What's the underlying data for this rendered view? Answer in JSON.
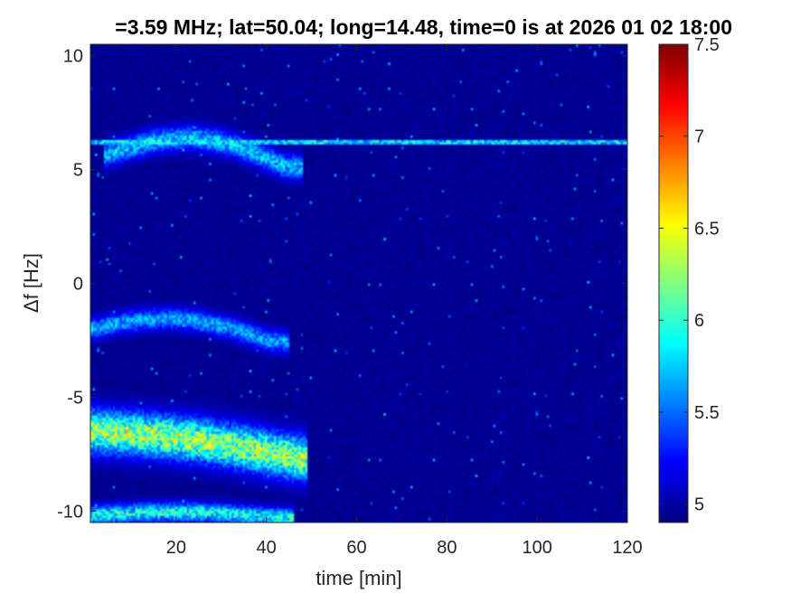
{
  "chart_data": {
    "type": "heatmap",
    "title": "=3.59 MHz;  lat=50.04; long=14.48, time=0 is at 2026 01 02 18:00",
    "xlabel": "time [min]",
    "ylabel": "Δf [Hz]",
    "xlim": [
      1,
      120
    ],
    "ylim": [
      -10.5,
      10.5
    ],
    "x_ticks": [
      20,
      40,
      60,
      80,
      100,
      120
    ],
    "y_ticks": [
      -10,
      -5,
      0,
      5,
      10
    ],
    "colormap": "jet",
    "clim": [
      4.9,
      7.5
    ],
    "colorbar_ticks": [
      5,
      5.5,
      6,
      6.5,
      7,
      7.5
    ],
    "grid": false,
    "background_level": 4.95,
    "colors": {
      "low": "#00008f",
      "mid": "#00ffff",
      "high": "#800000"
    },
    "features": [
      {
        "name": "carrier line",
        "time_start": 1,
        "time_end": 120,
        "df_start": 6.2,
        "df_end": 6.2,
        "df_peak": 6.2,
        "df_width": 0.08,
        "level": 6.3
      },
      {
        "name": "upper echo",
        "time_start": 4,
        "time_end": 48,
        "df_start": 5.6,
        "df_end": 5.1,
        "df_peak": 6.6,
        "df_width": 0.5,
        "level": 5.8
      },
      {
        "name": "mid echo",
        "time_start": 1,
        "time_end": 45,
        "df_start": -2.0,
        "df_end": -2.6,
        "df_peak": -1.3,
        "df_width": 0.45,
        "level": 5.7
      },
      {
        "name": "strong echo",
        "time_start": 1,
        "time_end": 49,
        "df_start": -6.5,
        "df_end": -7.7,
        "df_peak": -6.3,
        "df_width": 0.9,
        "level": 6.4
      },
      {
        "name": "bottom echo",
        "time_start": 1,
        "time_end": 46,
        "df_start": -10.2,
        "df_end": -10.3,
        "df_peak": -10.0,
        "df_width": 0.4,
        "level": 6.0
      }
    ]
  }
}
